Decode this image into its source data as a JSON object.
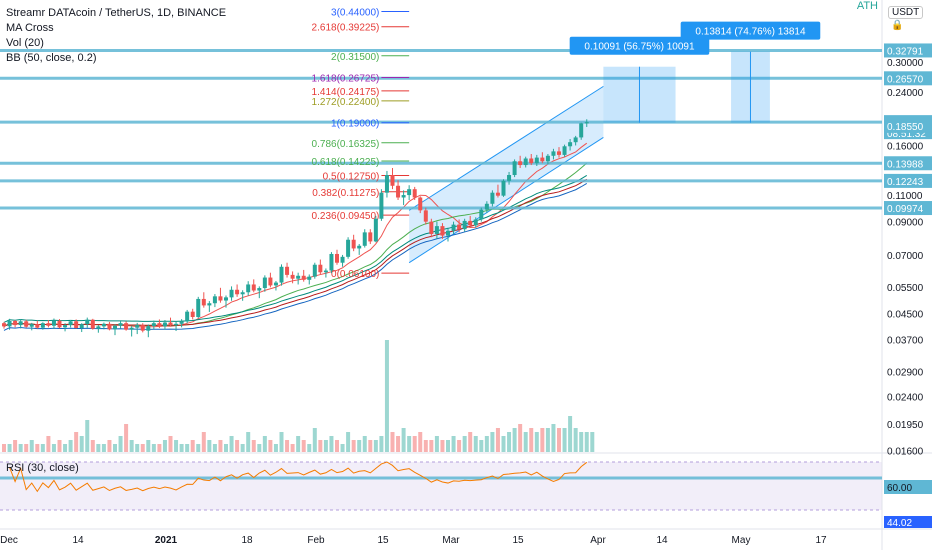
{
  "legend": {
    "symbol_line": "Streamr DATAcoin / TetherUS, 1D, BINANCE",
    "ma_cross": "MA Cross",
    "vol": "Vol (20)",
    "bb": "BB (50, close, 0.2)"
  },
  "rsi_legend": "RSI (30, close)",
  "ath_label": "ATH",
  "currency_button": "USDT",
  "colors": {
    "up": "#26a69a",
    "down": "#ef5350",
    "hline": "#5fb7d4",
    "fib_red": "#e53935",
    "fib_green": "#4caf50",
    "fib_blue": "#2962ff",
    "rsi": "#f57c00",
    "rsi_band": "#ede7f6",
    "measure": "#2196f3"
  },
  "chart_data": [
    {
      "type": "candlestick",
      "title": "Streamr DATAcoin / TetherUS, 1D, BINANCE",
      "scale": "log",
      "ylim": [
        0.0158,
        0.48
      ],
      "x_tick_labels": [
        "Dec",
        "14",
        "2021",
        "18",
        "Feb",
        "15",
        "Mar",
        "15",
        "Apr",
        "14",
        "May",
        "17"
      ],
      "y_tick_labels": [
        "0.30000",
        "0.24000",
        "0.16000",
        "0.11000",
        "0.09000",
        "0.07000",
        "0.05500",
        "0.04500",
        "0.03700",
        "0.02900",
        "0.02400",
        "0.01950",
        "0.01600"
      ],
      "price_tags": [
        {
          "text": "0.32791",
          "price": 0.32791
        },
        {
          "text": "0.26570",
          "price": 0.2657
        },
        {
          "text": "0.19082",
          "price": 0.19082,
          "sub": "08:51:32"
        },
        {
          "text": "0.18550",
          "price": 0.1855
        },
        {
          "text": "0.13988",
          "price": 0.13988
        },
        {
          "text": "0.12243",
          "price": 0.12243
        },
        {
          "text": "0.09974",
          "price": 0.09974
        }
      ],
      "horizontal_levels": [
        0.32791,
        0.2657,
        0.19082,
        0.13988,
        0.12243,
        0.09974
      ],
      "fib_levels": [
        {
          "label": "3(0.44000)",
          "price": 0.44,
          "color": "#2962ff"
        },
        {
          "label": "2.618(0.39225)",
          "price": 0.39225,
          "color": "#e53935"
        },
        {
          "label": "2(0.31500)",
          "price": 0.315,
          "color": "#4caf50"
        },
        {
          "label": "1.618(0.26725)",
          "price": 0.26725,
          "color": "#9c27b0"
        },
        {
          "label": "1.414(0.24175)",
          "price": 0.24175,
          "color": "#e53935"
        },
        {
          "label": "1.272(0.22400)",
          "price": 0.224,
          "color": "#9e9d24"
        },
        {
          "label": "1(0.19000)",
          "price": 0.19,
          "color": "#2962ff"
        },
        {
          "label": "0.786(0.16325)",
          "price": 0.16325,
          "color": "#4caf50"
        },
        {
          "label": "0.618(0.14225)",
          "price": 0.14225,
          "color": "#4caf50"
        },
        {
          "label": "0.5(0.12750)",
          "price": 0.1275,
          "color": "#e53935"
        },
        {
          "label": "0.382(0.11275)",
          "price": 0.11275,
          "color": "#e53935"
        },
        {
          "label": "0.236(0.09450)",
          "price": 0.0945,
          "color": "#e53935"
        },
        {
          "label": "0(0.06100)",
          "price": 0.061,
          "color": "#e53935"
        }
      ],
      "measurements": [
        {
          "label": "0.10091 (56.75%) 10091",
          "from": 0.19,
          "to": 0.29
        },
        {
          "label": "0.13814 (74.76%) 13814",
          "from": 0.19,
          "to": 0.325
        }
      ],
      "candles": [
        [
          0.0418,
          0.0422,
          0.0401,
          0.0408
        ],
        [
          0.0408,
          0.0432,
          0.0398,
          0.0425
        ],
        [
          0.0425,
          0.0428,
          0.0405,
          0.0412
        ],
        [
          0.0412,
          0.0431,
          0.0402,
          0.0424
        ],
        [
          0.0424,
          0.0429,
          0.0404,
          0.0407
        ],
        [
          0.0407,
          0.0419,
          0.0396,
          0.0415
        ],
        [
          0.0415,
          0.0426,
          0.0401,
          0.0404
        ],
        [
          0.0404,
          0.0421,
          0.0398,
          0.0418
        ],
        [
          0.0418,
          0.0428,
          0.0405,
          0.041
        ],
        [
          0.041,
          0.0433,
          0.04,
          0.0426
        ],
        [
          0.0426,
          0.0431,
          0.0402,
          0.0405
        ],
        [
          0.0405,
          0.0418,
          0.0393,
          0.0412
        ],
        [
          0.0412,
          0.0428,
          0.0405,
          0.0424
        ],
        [
          0.0424,
          0.043,
          0.0401,
          0.0403
        ],
        [
          0.0403,
          0.0418,
          0.0391,
          0.0415
        ],
        [
          0.0415,
          0.0436,
          0.0404,
          0.0429
        ],
        [
          0.0429,
          0.0432,
          0.0398,
          0.0401
        ],
        [
          0.0401,
          0.0412,
          0.0389,
          0.0408
        ],
        [
          0.0408,
          0.042,
          0.0399,
          0.0416
        ],
        [
          0.0416,
          0.0422,
          0.0396,
          0.0399
        ],
        [
          0.0399,
          0.0414,
          0.0382,
          0.041
        ],
        [
          0.041,
          0.0425,
          0.0402,
          0.0418
        ],
        [
          0.0418,
          0.0424,
          0.0395,
          0.0398
        ],
        [
          0.0398,
          0.0409,
          0.0378,
          0.0404
        ],
        [
          0.0404,
          0.0419,
          0.0385,
          0.0412
        ],
        [
          0.0412,
          0.0418,
          0.039,
          0.0395
        ],
        [
          0.0395,
          0.0414,
          0.0376,
          0.0409
        ],
        [
          0.0409,
          0.0426,
          0.04,
          0.0418
        ],
        [
          0.0418,
          0.043,
          0.0403,
          0.0408
        ],
        [
          0.0408,
          0.0428,
          0.0398,
          0.042
        ],
        [
          0.042,
          0.0436,
          0.0408,
          0.0412
        ],
        [
          0.0412,
          0.0422,
          0.0394,
          0.0416
        ],
        [
          0.0416,
          0.0431,
          0.0405,
          0.0424
        ],
        [
          0.0424,
          0.0462,
          0.0418,
          0.0456
        ],
        [
          0.0456,
          0.0466,
          0.043,
          0.0438
        ],
        [
          0.0438,
          0.051,
          0.0434,
          0.0502
        ],
        [
          0.0502,
          0.0528,
          0.047,
          0.0478
        ],
        [
          0.0478,
          0.0494,
          0.0455,
          0.0486
        ],
        [
          0.0486,
          0.0521,
          0.0472,
          0.0512
        ],
        [
          0.0512,
          0.0546,
          0.0488,
          0.0496
        ],
        [
          0.0496,
          0.0515,
          0.047,
          0.0508
        ],
        [
          0.0508,
          0.0552,
          0.0495,
          0.0538
        ],
        [
          0.0538,
          0.056,
          0.051,
          0.052
        ],
        [
          0.052,
          0.0536,
          0.0495,
          0.0528
        ],
        [
          0.0528,
          0.0574,
          0.0515,
          0.056
        ],
        [
          0.056,
          0.0582,
          0.0528,
          0.0535
        ],
        [
          0.0535,
          0.0552,
          0.0505,
          0.0545
        ],
        [
          0.0545,
          0.06,
          0.053,
          0.059
        ],
        [
          0.059,
          0.0612,
          0.0548,
          0.0556
        ],
        [
          0.0556,
          0.0575,
          0.0535,
          0.0568
        ],
        [
          0.0568,
          0.0652,
          0.0555,
          0.064
        ],
        [
          0.064,
          0.066,
          0.059,
          0.0602
        ],
        [
          0.0602,
          0.0618,
          0.0565,
          0.0585
        ],
        [
          0.0585,
          0.0612,
          0.056,
          0.0598
        ],
        [
          0.0598,
          0.0625,
          0.0572,
          0.058
        ],
        [
          0.058,
          0.0604,
          0.056,
          0.0594
        ],
        [
          0.0594,
          0.066,
          0.0585,
          0.065
        ],
        [
          0.065,
          0.0676,
          0.0605,
          0.0614
        ],
        [
          0.0614,
          0.0632,
          0.059,
          0.0622
        ],
        [
          0.0622,
          0.0715,
          0.061,
          0.0705
        ],
        [
          0.0705,
          0.0728,
          0.065,
          0.066
        ],
        [
          0.066,
          0.07,
          0.064,
          0.069
        ],
        [
          0.069,
          0.08,
          0.068,
          0.0785
        ],
        [
          0.0785,
          0.0815,
          0.072,
          0.0735
        ],
        [
          0.0735,
          0.076,
          0.07,
          0.075
        ],
        [
          0.075,
          0.085,
          0.074,
          0.083
        ],
        [
          0.083,
          0.085,
          0.076,
          0.0775
        ],
        [
          0.0775,
          0.094,
          0.077,
          0.092
        ],
        [
          0.092,
          0.115,
          0.0905,
          0.112
        ],
        [
          0.112,
          0.132,
          0.108,
          0.128
        ],
        [
          0.128,
          0.135,
          0.115,
          0.118
        ],
        [
          0.118,
          0.123,
          0.106,
          0.108
        ],
        [
          0.108,
          0.114,
          0.102,
          0.11
        ],
        [
          0.11,
          0.1185,
          0.106,
          0.115
        ],
        [
          0.115,
          0.117,
          0.106,
          0.108
        ],
        [
          0.108,
          0.109,
          0.096,
          0.098
        ],
        [
          0.098,
          0.1,
          0.088,
          0.09
        ],
        [
          0.09,
          0.092,
          0.08,
          0.082
        ],
        [
          0.082,
          0.09,
          0.079,
          0.087
        ],
        [
          0.087,
          0.089,
          0.079,
          0.081
        ],
        [
          0.081,
          0.086,
          0.0775,
          0.084
        ],
        [
          0.084,
          0.09,
          0.082,
          0.088
        ],
        [
          0.088,
          0.0915,
          0.083,
          0.085
        ],
        [
          0.085,
          0.092,
          0.0835,
          0.0905
        ],
        [
          0.0905,
          0.094,
          0.086,
          0.0875
        ],
        [
          0.0875,
          0.093,
          0.086,
          0.0915
        ],
        [
          0.0915,
          0.1,
          0.09,
          0.0985
        ],
        [
          0.0985,
          0.105,
          0.096,
          0.103
        ],
        [
          0.103,
          0.114,
          0.101,
          0.112
        ],
        [
          0.112,
          0.119,
          0.108,
          0.1095
        ],
        [
          0.1095,
          0.124,
          0.1085,
          0.1225
        ],
        [
          0.1225,
          0.131,
          0.119,
          0.128
        ],
        [
          0.128,
          0.144,
          0.126,
          0.142
        ],
        [
          0.142,
          0.148,
          0.135,
          0.138
        ],
        [
          0.138,
          0.147,
          0.1355,
          0.145
        ],
        [
          0.145,
          0.15,
          0.138,
          0.14
        ],
        [
          0.14,
          0.149,
          0.137,
          0.146
        ],
        [
          0.146,
          0.152,
          0.14,
          0.142
        ],
        [
          0.142,
          0.15,
          0.139,
          0.148
        ],
        [
          0.148,
          0.156,
          0.144,
          0.153
        ],
        [
          0.153,
          0.158,
          0.146,
          0.149
        ],
        [
          0.149,
          0.161,
          0.147,
          0.159
        ],
        [
          0.159,
          0.168,
          0.154,
          0.164
        ],
        [
          0.164,
          0.172,
          0.16,
          0.17
        ],
        [
          0.17,
          0.19,
          0.167,
          0.189
        ],
        [
          0.189,
          0.195,
          0.184,
          0.1908
        ]
      ]
    },
    {
      "type": "bar",
      "title": "Vol (20)",
      "values": [
        2,
        2,
        3,
        2,
        2,
        3,
        2,
        2,
        4,
        2,
        3,
        2,
        3,
        5,
        4,
        8,
        3,
        2,
        2,
        3,
        2,
        4,
        7,
        3,
        2,
        2,
        3,
        2,
        2,
        3,
        4,
        3,
        2,
        2,
        3,
        2,
        5,
        3,
        2,
        3,
        2,
        4,
        3,
        2,
        5,
        3,
        2,
        4,
        3,
        2,
        5,
        3,
        2,
        4,
        3,
        2,
        6,
        3,
        3,
        4,
        3,
        2,
        5,
        3,
        3,
        4,
        3,
        3,
        4,
        28,
        5,
        4,
        6,
        4,
        4,
        5,
        3,
        3,
        4,
        3,
        3,
        4,
        3,
        4,
        5,
        4,
        3,
        4,
        5,
        6,
        4,
        5,
        6,
        7,
        5,
        6,
        5,
        6,
        6,
        7,
        6,
        6,
        9,
        6,
        5,
        5,
        5
      ]
    },
    {
      "type": "line",
      "title": "RSI (30, close)",
      "y_tick_labels": [
        "60.00",
        "44.02"
      ],
      "levels": [
        70,
        60,
        30
      ]
    }
  ]
}
